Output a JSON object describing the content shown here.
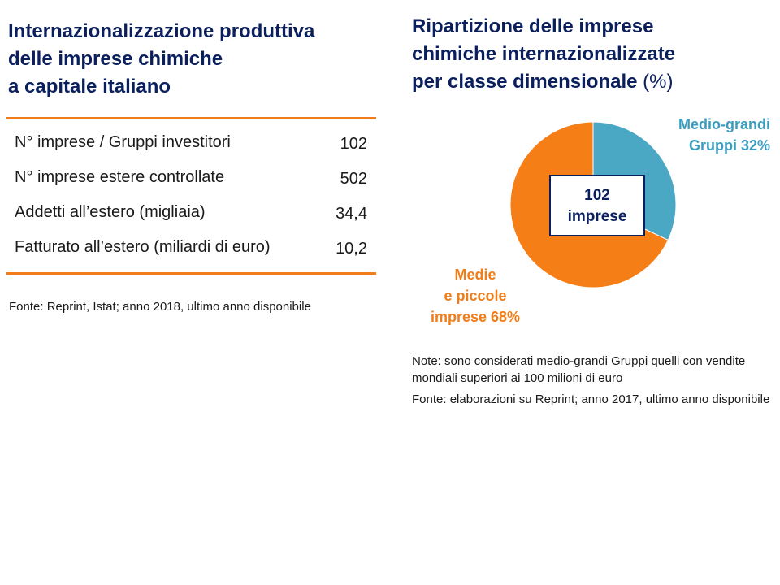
{
  "left": {
    "title_lines": [
      "Internazionalizzazione produttiva",
      "delle imprese chimiche",
      "a capitale italiano"
    ],
    "stats": [
      {
        "label": "N° imprese / Gruppi investitori",
        "value": "102"
      },
      {
        "label": "N° imprese estere controllate",
        "value": "502"
      },
      {
        "label": "Addetti all’estero (migliaia)",
        "value": "34,4"
      },
      {
        "label": "Fatturato all’estero (miliardi di euro)",
        "value": "10,2"
      }
    ],
    "source": "Fonte: Reprint, Istat; anno 2018, ultimo anno disponibile"
  },
  "right": {
    "title_lines": [
      "Ripartizione delle imprese",
      "chimiche internazionalizzate",
      "per classe dimensionale"
    ],
    "title_unit": "(%)",
    "center_label": [
      "102",
      "imprese"
    ],
    "note": "Note: sono considerati medio-grandi Gruppi quelli con vendite mondiali superiori ai 100 milioni di euro",
    "source": "Fonte: elaborazioni su Reprint; anno 2017, ultimo anno disponibile"
  },
  "chart_data": {
    "type": "pie",
    "unit": "%",
    "start_angle_deg": 0,
    "slices": [
      {
        "label_lines": [
          "Medio-grandi",
          "Gruppi 32%"
        ],
        "value": 32,
        "color": "#4aa8c4",
        "label_color": "#3a9dbf"
      },
      {
        "label_lines": [
          "Medie",
          "e piccole",
          "imprese 68%"
        ],
        "value": 68,
        "color": "#f57e17",
        "label_color": "#f07d1a"
      }
    ]
  }
}
